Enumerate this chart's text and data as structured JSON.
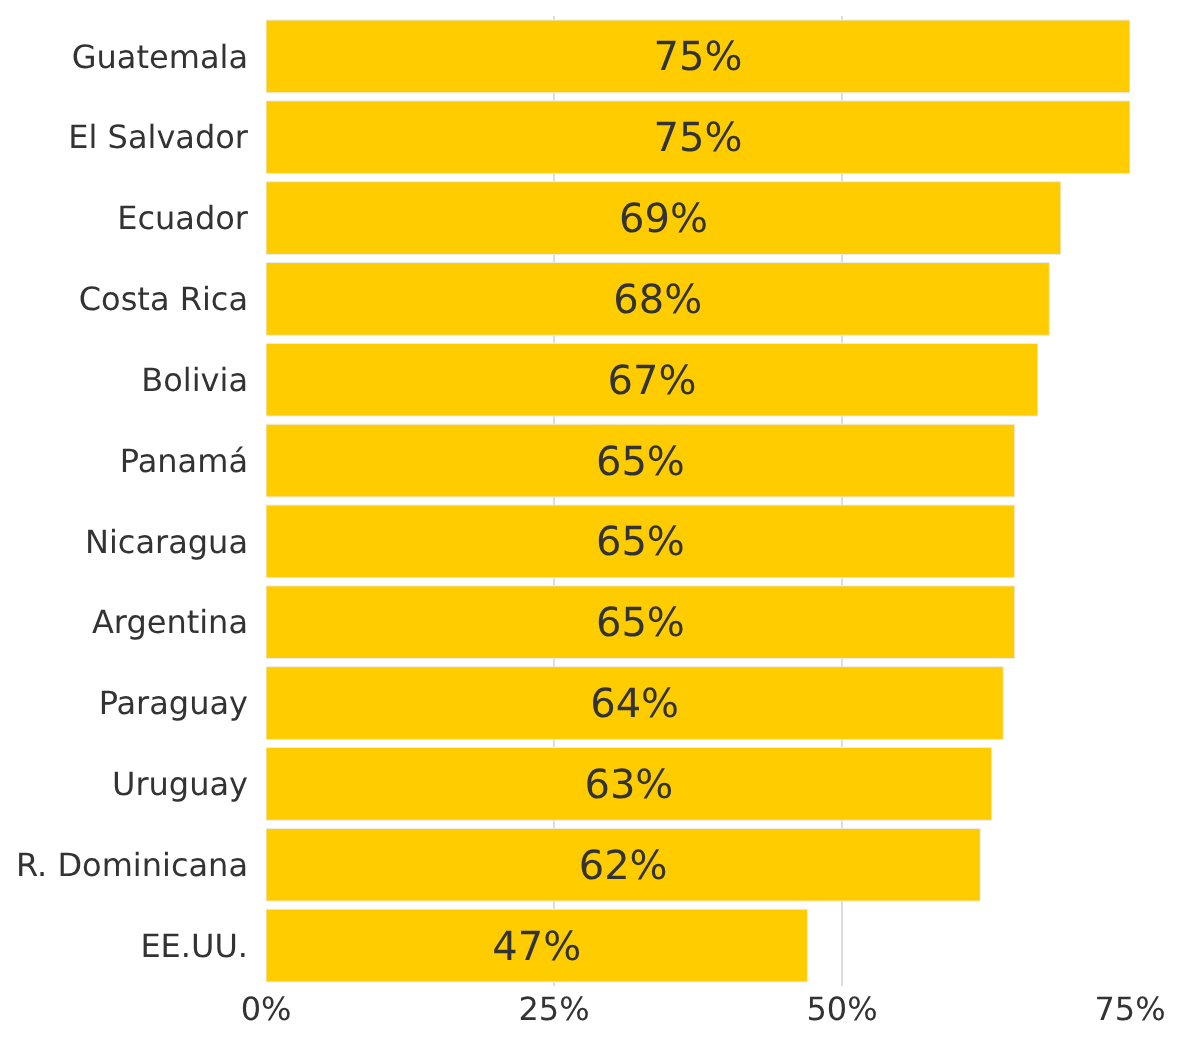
{
  "chart_data": {
    "type": "bar",
    "orientation": "horizontal",
    "categories": [
      "Guatemala",
      "El Salvador",
      "Ecuador",
      "Costa Rica",
      "Bolivia",
      "Panamá",
      "Nicaragua",
      "Argentina",
      "Paraguay",
      "Uruguay",
      "R. Dominicana",
      "EE.UU."
    ],
    "values": [
      75,
      75,
      69,
      68,
      67,
      65,
      65,
      65,
      64,
      63,
      62,
      47
    ],
    "value_labels": [
      "75%",
      "75%",
      "69%",
      "68%",
      "67%",
      "65%",
      "65%",
      "65%",
      "64%",
      "63%",
      "62%",
      "47%"
    ],
    "color": "#ffcc00",
    "xlim": [
      0,
      75
    ],
    "xticks": [
      {
        "value": 0,
        "label": "0%"
      },
      {
        "value": 25,
        "label": "25%"
      },
      {
        "value": 50,
        "label": "50%"
      },
      {
        "value": 75,
        "label": "75%"
      }
    ],
    "grid": "x"
  }
}
